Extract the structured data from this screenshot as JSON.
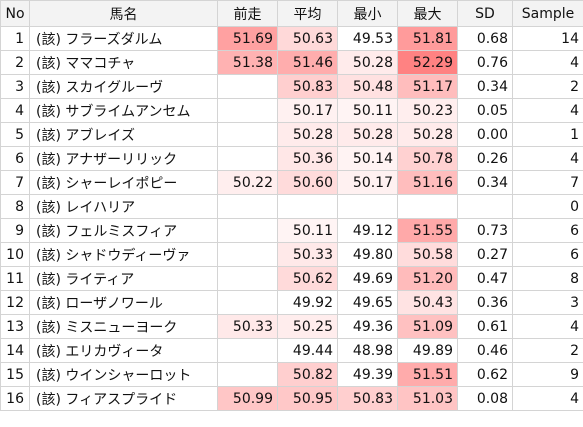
{
  "headers": {
    "no": "No",
    "name": "馬名",
    "prev": "前走",
    "avg": "平均",
    "min": "最小",
    "max": "最大",
    "sd": "SD",
    "sample": "Sample"
  },
  "rows": [
    {
      "no": "1",
      "name": "(該) フラーズダルム",
      "prev": "51.69",
      "avg": "50.63",
      "min": "49.53",
      "max": "51.81",
      "sd": "0.68",
      "sample": "14"
    },
    {
      "no": "2",
      "name": "(該) ママコチャ",
      "prev": "51.38",
      "avg": "51.46",
      "min": "50.28",
      "max": "52.29",
      "sd": "0.76",
      "sample": "4"
    },
    {
      "no": "3",
      "name": "(該) スカイグルーヴ",
      "prev": "",
      "avg": "50.83",
      "min": "50.48",
      "max": "51.17",
      "sd": "0.34",
      "sample": "2"
    },
    {
      "no": "4",
      "name": "(該) サブライムアンセム",
      "prev": "",
      "avg": "50.17",
      "min": "50.11",
      "max": "50.23",
      "sd": "0.05",
      "sample": "4"
    },
    {
      "no": "5",
      "name": "(該) アブレイズ",
      "prev": "",
      "avg": "50.28",
      "min": "50.28",
      "max": "50.28",
      "sd": "0.00",
      "sample": "1"
    },
    {
      "no": "6",
      "name": "(該) アナザーリリック",
      "prev": "",
      "avg": "50.36",
      "min": "50.14",
      "max": "50.78",
      "sd": "0.26",
      "sample": "4"
    },
    {
      "no": "7",
      "name": "(該) シャーレイポピー",
      "prev": "50.22",
      "avg": "50.60",
      "min": "50.17",
      "max": "51.16",
      "sd": "0.34",
      "sample": "7"
    },
    {
      "no": "8",
      "name": "(該) レイハリア",
      "prev": "",
      "avg": "",
      "min": "",
      "max": "",
      "sd": "",
      "sample": "0"
    },
    {
      "no": "9",
      "name": "(該) フェルミスフィア",
      "prev": "",
      "avg": "50.11",
      "min": "49.12",
      "max": "51.55",
      "sd": "0.73",
      "sample": "6"
    },
    {
      "no": "10",
      "name": "(該) シャドウディーヴァ",
      "prev": "",
      "avg": "50.33",
      "min": "49.80",
      "max": "50.58",
      "sd": "0.27",
      "sample": "6"
    },
    {
      "no": "11",
      "name": "(該) ライティア",
      "prev": "",
      "avg": "50.62",
      "min": "49.69",
      "max": "51.20",
      "sd": "0.47",
      "sample": "8"
    },
    {
      "no": "12",
      "name": "(該) ローザノワール",
      "prev": "",
      "avg": "49.92",
      "min": "49.65",
      "max": "50.43",
      "sd": "0.36",
      "sample": "3"
    },
    {
      "no": "13",
      "name": "(該) ミスニューヨーク",
      "prev": "50.33",
      "avg": "50.25",
      "min": "49.36",
      "max": "51.09",
      "sd": "0.61",
      "sample": "4"
    },
    {
      "no": "14",
      "name": "(該) エリカヴィータ",
      "prev": "",
      "avg": "49.44",
      "min": "48.98",
      "max": "49.89",
      "sd": "0.46",
      "sample": "2"
    },
    {
      "no": "15",
      "name": "(該) ウインシャーロット",
      "prev": "",
      "avg": "50.82",
      "min": "49.39",
      "max": "51.51",
      "sd": "0.62",
      "sample": "9"
    },
    {
      "no": "16",
      "name": "(該) フィアスプライド",
      "prev": "50.99",
      "avg": "50.95",
      "min": "50.83",
      "max": "51.03",
      "sd": "0.08",
      "sample": "4"
    }
  ]
}
